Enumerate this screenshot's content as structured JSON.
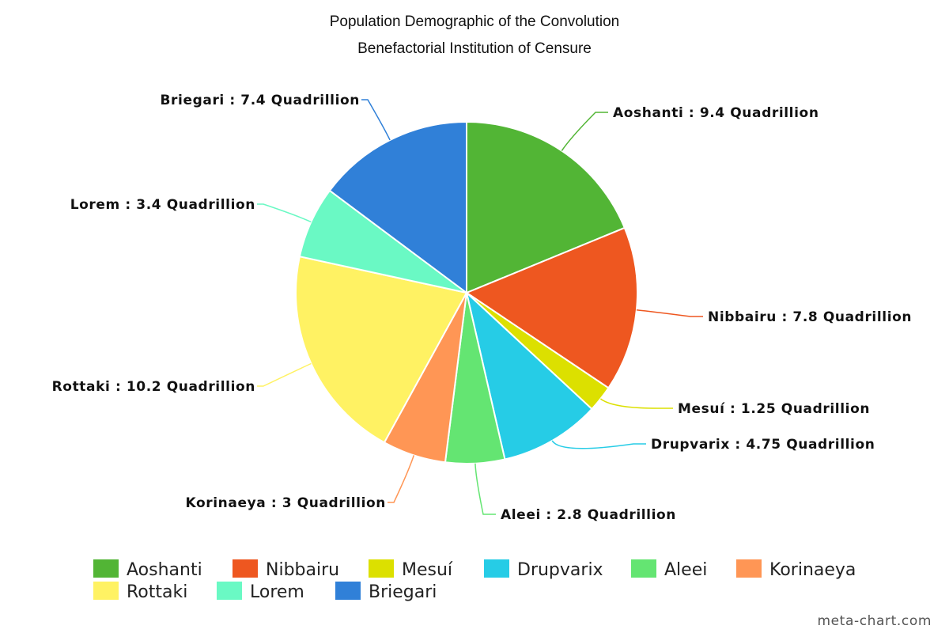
{
  "chart_data": {
    "type": "pie",
    "title_lines": [
      "Population Demographic of the Convolution",
      "Benefactorial Institution of Censure"
    ],
    "unit": "Quadrillion",
    "slices": [
      {
        "name": "Aoshanti",
        "value": 9.4,
        "label": "Aoshanti : 9.4 Quadrillion",
        "color": "#52b535"
      },
      {
        "name": "Nibbairu",
        "value": 7.8,
        "label": "Nibbairu : 7.8 Quadrillion",
        "color": "#ee5720"
      },
      {
        "name": "Mesuí",
        "value": 1.25,
        "label": "Mesuí : 1.25 Quadrillion",
        "color": "#dce000"
      },
      {
        "name": "Drupvarix",
        "value": 4.75,
        "label": "Drupvarix : 4.75 Quadrillion",
        "color": "#26cce6"
      },
      {
        "name": "Aleei",
        "value": 2.8,
        "label": "Aleei : 2.8 Quadrillion",
        "color": "#64e572"
      },
      {
        "name": "Korinaeya",
        "value": 3,
        "label": "Korinaeya : 3 Quadrillion",
        "color": "#ff9655"
      },
      {
        "name": "Rottaki",
        "value": 10.2,
        "label": "Rottaki : 10.2 Quadrillion",
        "color": "#fff263"
      },
      {
        "name": "Lorem",
        "value": 3.4,
        "label": "Lorem : 3.4 Quadrillion",
        "color": "#6af9c4"
      },
      {
        "name": "Briegari",
        "value": 7.4,
        "label": "Briegari : 7.4 Quadrillion",
        "color": "#3080d8"
      }
    ],
    "legend_position": "bottom",
    "start_angle": "12 o'clock",
    "direction": "clockwise"
  },
  "watermark": "meta-chart.com"
}
